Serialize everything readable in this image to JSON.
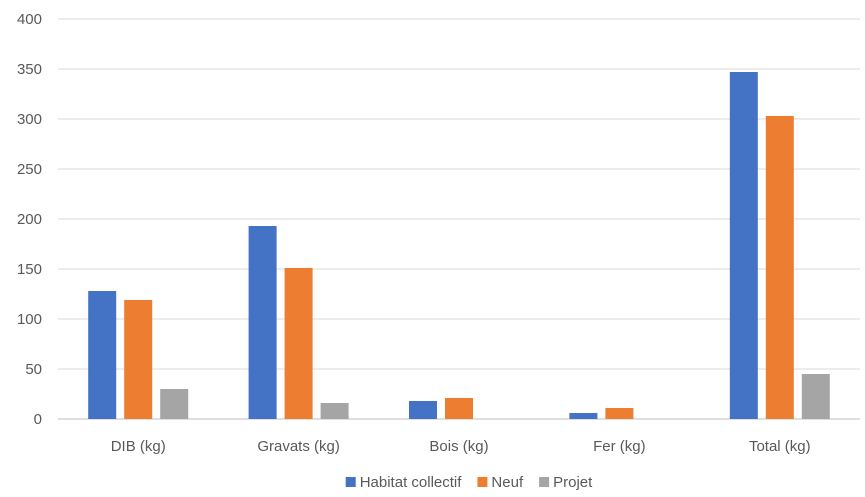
{
  "chart_data": {
    "type": "bar",
    "title": "",
    "xlabel": "",
    "ylabel": "",
    "categories": [
      "DIB (kg)",
      "Gravats (kg)",
      "Bois (kg)",
      "Fer (kg)",
      "Total (kg)"
    ],
    "series": [
      {
        "name": "Habitat collectif",
        "color": "#4472C4",
        "values": [
          128,
          193,
          18,
          6,
          347
        ]
      },
      {
        "name": "Neuf",
        "color": "#ED7D31",
        "values": [
          119,
          151,
          21,
          11,
          303
        ]
      },
      {
        "name": "Projet",
        "color": "#A5A5A5",
        "values": [
          30,
          16,
          0,
          0,
          45
        ]
      }
    ],
    "ylim": [
      0,
      400
    ],
    "yticks": [
      0,
      50,
      100,
      150,
      200,
      250,
      300,
      350,
      400
    ],
    "grid": true,
    "legend_position": "bottom"
  }
}
